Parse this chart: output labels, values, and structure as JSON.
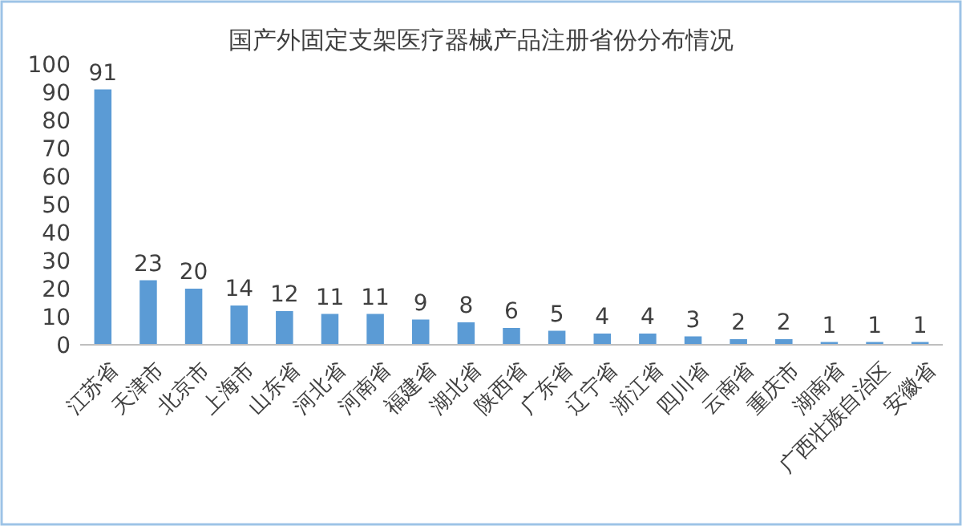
{
  "chart_data": {
    "type": "bar",
    "title": "国产外固定支架医疗器械产品注册省份分布情况",
    "categories": [
      "江苏省",
      "天津市",
      "北京市",
      "上海市",
      "山东省",
      "河北省",
      "河南省",
      "福建省",
      "湖北省",
      "陕西省",
      "广东省",
      "辽宁省",
      "浙江省",
      "四川省",
      "云南省",
      "重庆市",
      "湖南省",
      "广西壮族自治区",
      "安徽省"
    ],
    "values": [
      91,
      23,
      20,
      14,
      12,
      11,
      11,
      9,
      8,
      6,
      5,
      4,
      4,
      3,
      2,
      2,
      1,
      1,
      1
    ],
    "color": "#5b9bd5",
    "ylim": [
      0,
      100
    ],
    "yticks": [
      0,
      10,
      20,
      30,
      40,
      50,
      60,
      70,
      80,
      90,
      100
    ],
    "data_labels": true
  }
}
